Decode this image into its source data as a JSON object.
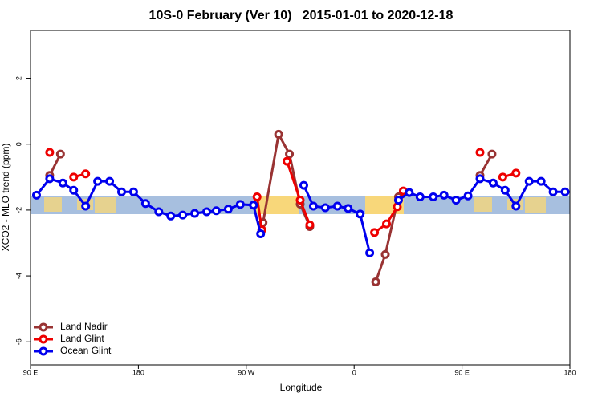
{
  "chart_data": {
    "type": "line",
    "title": "10S-0 February (Ver 10)   2015-01-01 to 2020-12-18",
    "x_label": "Longitude",
    "y_label": "XCO2 - MLO trend (ppm)",
    "xlim": [
      90,
      540
    ],
    "ylim": [
      -6.7,
      3.45
    ],
    "xticks": [
      {
        "value": 90,
        "label": "90 E"
      },
      180,
      {
        "value": 270,
        "label": "90 W"
      },
      {
        "value": 360,
        "label": "0"
      },
      {
        "value": 450,
        "label": "90 E"
      },
      {
        "value": 540,
        "label": "180"
      }
    ],
    "yticks": [
      -6,
      -4,
      -2,
      0,
      2
    ],
    "legend": "bottom-left",
    "series": [
      {
        "name": "Land Nadir",
        "color": "#993333",
        "x": [
          106,
          115,
          300,
          284,
          297,
          306,
          315,
          323,
          350,
          378,
          386,
          397,
          401,
          430,
          465,
          475
        ],
        "values": [
          -0.95,
          -0.3,
          null,
          -2.38,
          0.3,
          -0.3,
          -1.82,
          -2.5,
          null,
          -4.18,
          -3.35,
          -1.6,
          -1.45,
          null,
          -0.95,
          -0.3
        ]
      },
      {
        "name": "Land Glint",
        "color": "#ee0000",
        "x": [
          106,
          112,
          126,
          136,
          230,
          279,
          283,
          290,
          304,
          315,
          323,
          350,
          377,
          387,
          396,
          401,
          430,
          465,
          470,
          484,
          495
        ],
        "values": [
          -0.25,
          null,
          -1.0,
          -0.9,
          null,
          -1.6,
          -2.6,
          null,
          -0.52,
          -1.7,
          -2.45,
          null,
          -2.68,
          -2.42,
          -1.9,
          -1.42,
          null,
          -0.25,
          null,
          -1.0,
          -0.88
        ]
      },
      {
        "name": "Ocean Glint",
        "color": "#0000ee",
        "x": [
          95,
          106,
          117,
          126,
          136,
          146,
          156,
          166,
          176,
          186,
          197,
          207,
          217,
          227,
          237,
          245,
          255,
          265,
          276,
          282,
          300,
          318,
          326,
          336,
          346,
          355,
          365,
          373,
          385,
          397,
          406,
          415,
          426,
          435,
          445,
          455,
          465,
          476,
          486,
          495,
          506,
          516,
          526,
          536
        ],
        "values": [
          -1.55,
          -1.05,
          -1.18,
          -1.4,
          -1.88,
          -1.13,
          -1.13,
          -1.45,
          -1.45,
          -1.8,
          -2.05,
          -2.18,
          -2.15,
          -2.1,
          -2.05,
          -2.02,
          -1.97,
          -1.83,
          -1.85,
          -2.72,
          null,
          -1.25,
          -1.88,
          -1.93,
          -1.88,
          -1.95,
          -2.12,
          -3.3,
          null,
          -1.7,
          -1.47,
          -1.6,
          -1.6,
          -1.55,
          -1.7,
          -1.57,
          -1.05,
          -1.18,
          -1.4,
          -1.88,
          -1.13,
          -1.13,
          -1.45,
          -1.45
        ]
      }
    ]
  }
}
